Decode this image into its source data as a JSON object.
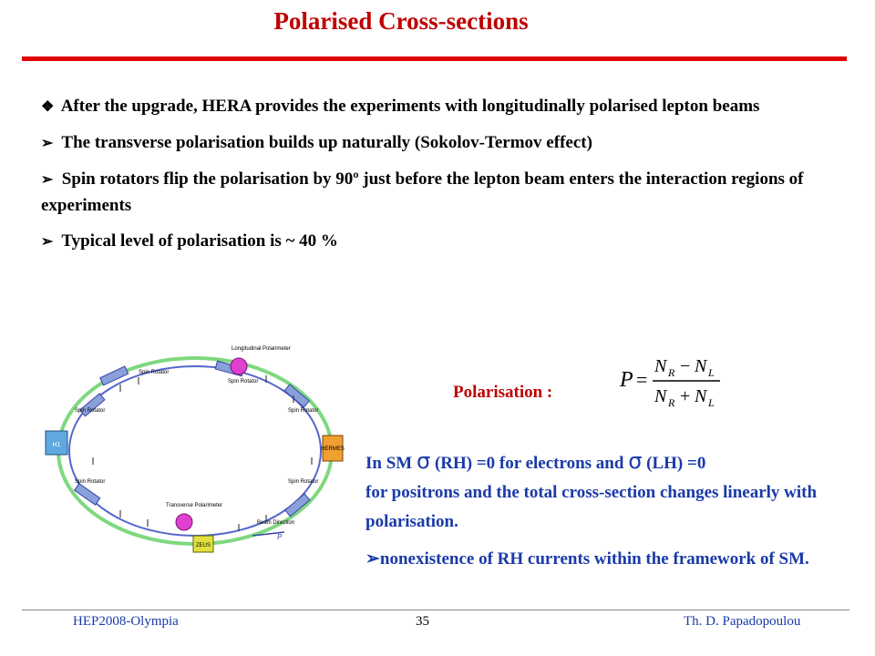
{
  "title": "Polarised Cross-sections",
  "bullets": [
    {
      "marker": "❖",
      "text": "After the upgrade, HERA provides the experiments with longitudinally polarised lepton beams"
    },
    {
      "marker": "➢",
      "text": "The transverse polarisation builds up naturally (Sokolov-Termov effect)"
    },
    {
      "marker": "➢",
      "text": "Spin rotators flip the polarisation by 90º just before the lepton beam enters the interaction regions of experiments"
    },
    {
      "marker": "➢",
      "text": "Typical level of polarisation is ~ 40 %"
    }
  ],
  "diagram": {
    "labels": {
      "longitudinal_polarimeter": "Longitudinal Polarimeter",
      "transverse_polarimeter": "Transverse Polarimeter",
      "spin_rotator": "Spin Rotator",
      "beam_direction": "Beam Direction",
      "hermes": "HERMES",
      "h1": "H1",
      "zeus": "ZEUS",
      "p": "P"
    }
  },
  "polarisation_label": "Polarisation :",
  "formula": {
    "lhs": "P",
    "nr": "N",
    "r_sub": "R",
    "nl": "N",
    "l_sub": "L"
  },
  "sm": {
    "l1_a": "In SM",
    "sigma": "σ",
    "l1_b": "(RH) =0 for electrons and",
    "l1_c": "(LH) =0",
    "l2": "for positrons and the total cross-section changes linearly with polarisation.",
    "bullet_marker": "➢",
    "bullet": "nonexistence of RH currents within the framework of SM."
  },
  "footer": {
    "left": "HEP2008-Olympia",
    "page": "35",
    "right": "Th. D. Papadopoulou"
  },
  "colors": {
    "title": "#c00000",
    "rule": "#e00000",
    "blue_text": "#1a3aa8"
  }
}
